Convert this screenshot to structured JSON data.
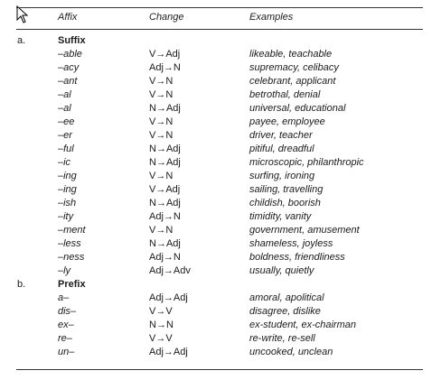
{
  "headers": {
    "affix": "Affix",
    "change": "Change",
    "examples": "Examples"
  },
  "sections": [
    {
      "marker": "a.",
      "title": "Suffix",
      "rows": [
        {
          "affix": "–able",
          "change": "V→Adj",
          "examples": "likeable, teachable"
        },
        {
          "affix": "–acy",
          "change": "Adj→N",
          "examples": "supremacy, celibacy"
        },
        {
          "affix": "–ant",
          "change": "V→N",
          "examples": "celebrant, applicant"
        },
        {
          "affix": "–al",
          "change": "V→N",
          "examples": "betrothal, denial"
        },
        {
          "affix": "–al",
          "change": "N→Adj",
          "examples": "universal, educational"
        },
        {
          "affix": "–ee",
          "change": "V→N",
          "examples": "payee, employee"
        },
        {
          "affix": "–er",
          "change": "V→N",
          "examples": "driver, teacher"
        },
        {
          "affix": "–ful",
          "change": "N→Adj",
          "examples": "pitiful, dreadful"
        },
        {
          "affix": "–ic",
          "change": "N→Adj",
          "examples": "microscopic, philanthropic"
        },
        {
          "affix": "–ing",
          "change": "V→N",
          "examples": "surfing, ironing"
        },
        {
          "affix": "–ing",
          "change": "V→Adj",
          "examples": "sailing, travelling"
        },
        {
          "affix": "–ish",
          "change": "N→Adj",
          "examples": "childish, boorish"
        },
        {
          "affix": "–ity",
          "change": "Adj→N",
          "examples": "timidity, vanity"
        },
        {
          "affix": "–ment",
          "change": "V→N",
          "examples": "government, amusement"
        },
        {
          "affix": "–less",
          "change": "N→Adj",
          "examples": "shameless, joyless"
        },
        {
          "affix": "–ness",
          "change": "Adj→N",
          "examples": "boldness, friendliness"
        },
        {
          "affix": "–ly",
          "change": "Adj→Adv",
          "examples": "usually, quietly"
        }
      ]
    },
    {
      "marker": "b.",
      "title": "Prefix",
      "rows": [
        {
          "affix": "a–",
          "change": "Adj→Adj",
          "examples": "amoral, apolitical"
        },
        {
          "affix": "dis–",
          "change": "V→V",
          "examples": "disagree, dislike"
        },
        {
          "affix": "ex–",
          "change": "N→N",
          "examples": "ex-student, ex-chairman"
        },
        {
          "affix": "re–",
          "change": "V→V",
          "examples": "re-write, re-sell"
        },
        {
          "affix": "un–",
          "change": "Adj→Adj",
          "examples": "uncooked, unclean"
        }
      ]
    }
  ]
}
